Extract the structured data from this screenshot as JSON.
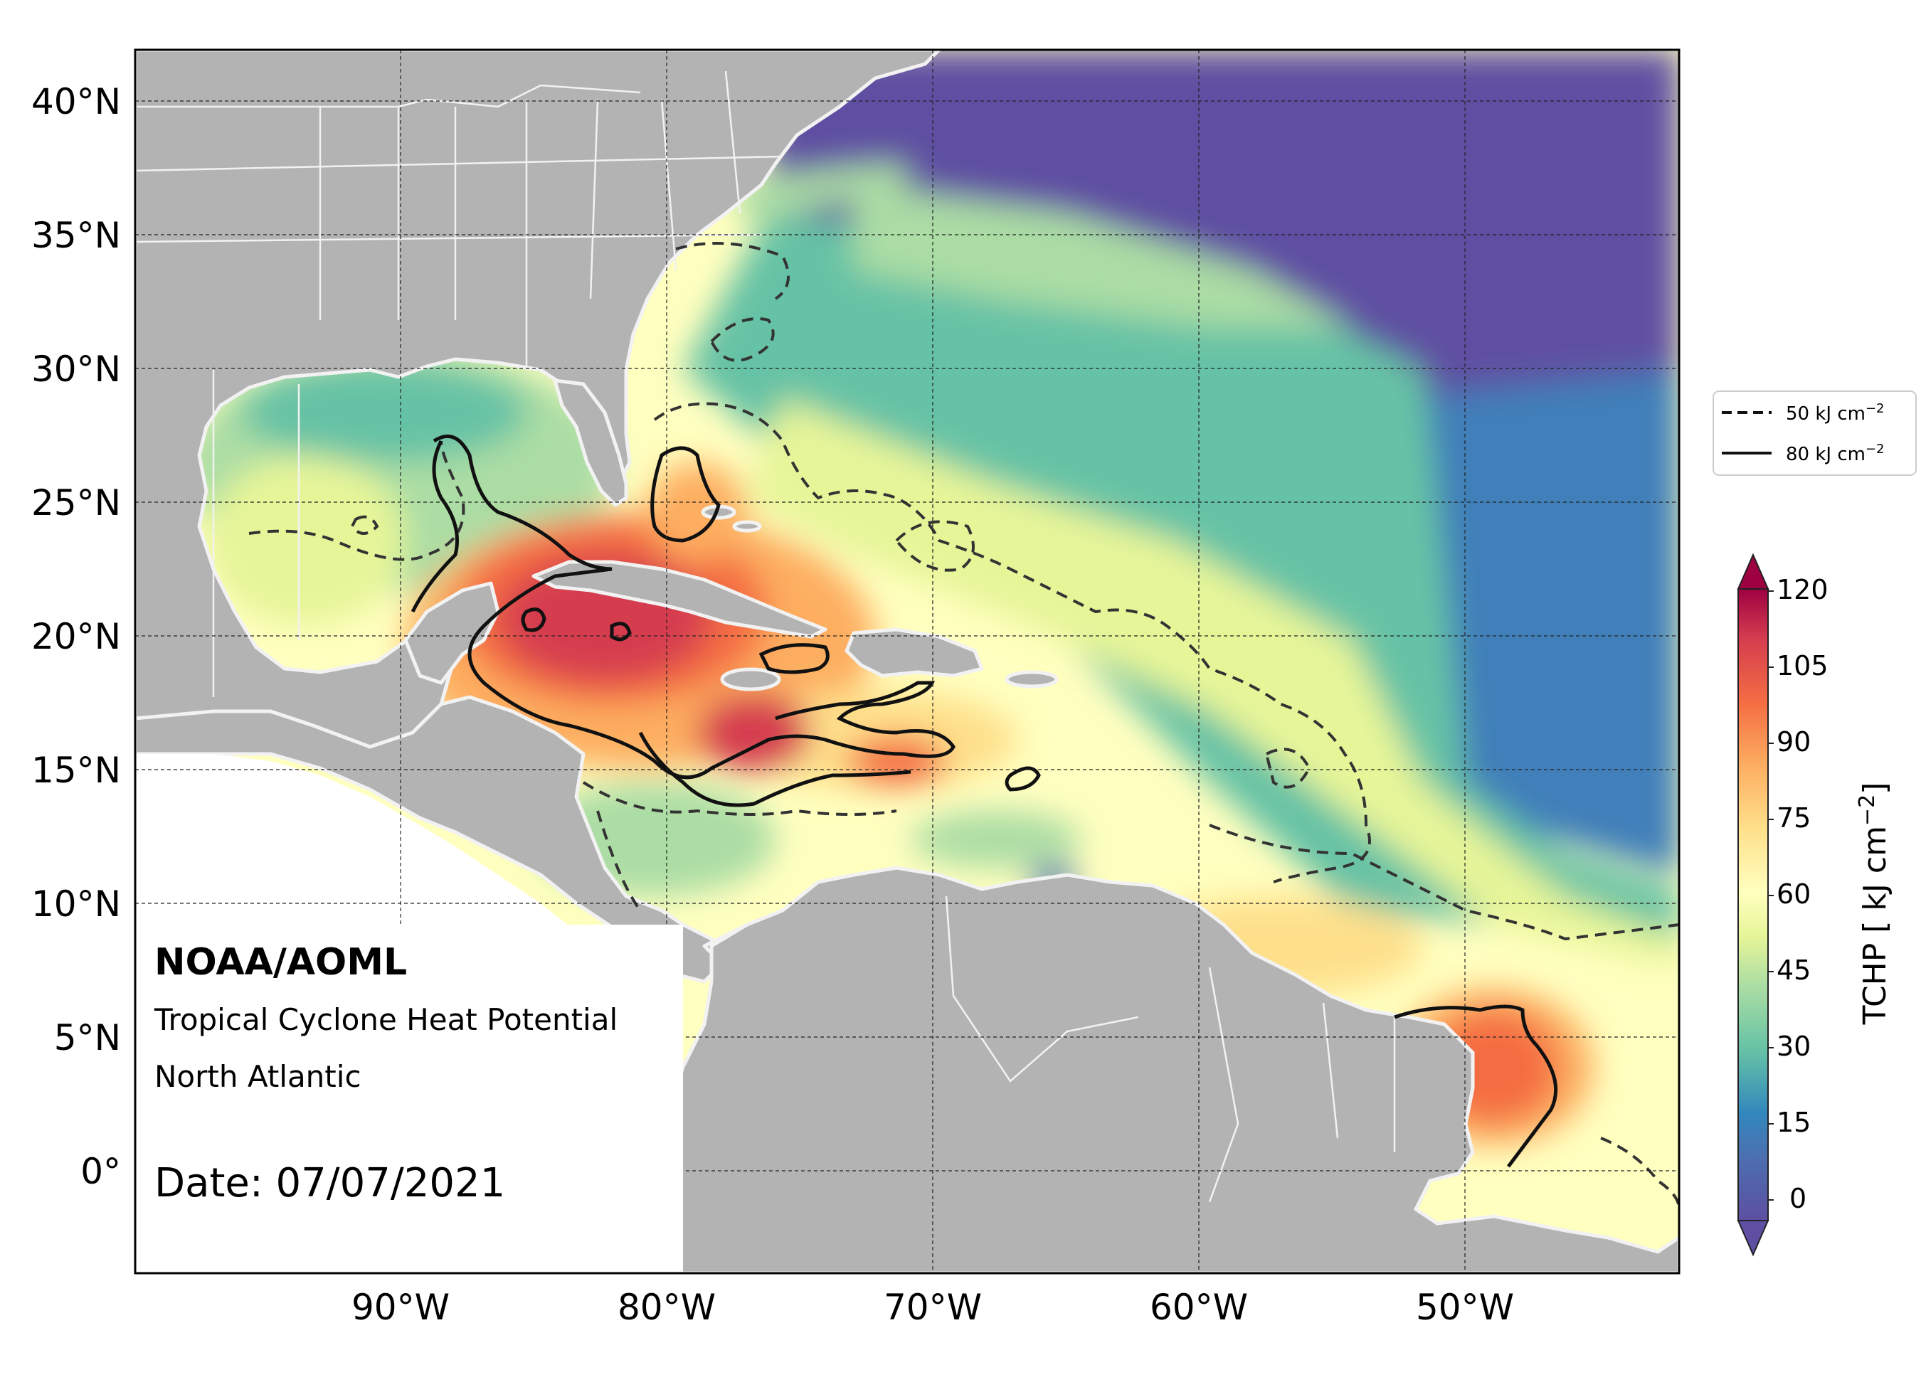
{
  "map": {
    "lat_ticks": [
      "40°N",
      "35°N",
      "30°N",
      "25°N",
      "20°N",
      "15°N",
      "10°N",
      "5°N",
      "0°"
    ],
    "lon_ticks": [
      "90°W",
      "80°W",
      "70°W",
      "60°W",
      "50°W"
    ],
    "extent": {
      "lon_min": -100,
      "lon_max": -42,
      "lat_min": -4,
      "lat_max": 42
    }
  },
  "info": {
    "org": "NOAA/AOML",
    "product": "Tropical Cyclone Heat Potential",
    "region": "North Atlantic",
    "date": "Date: 07/07/2021"
  },
  "legend": {
    "items": [
      {
        "label": "50 kJ cm",
        "sup": "−2",
        "style": "dashed"
      },
      {
        "label": "80 kJ cm",
        "sup": "−2",
        "style": "solid"
      }
    ]
  },
  "colorbar": {
    "title": "TCHP [ kJ cm",
    "title_sup": "−2",
    "title_end": "]",
    "ticks": [
      "120",
      "105",
      "90",
      "75",
      "60",
      "45",
      "30",
      "15",
      "0"
    ],
    "min": 0,
    "max": 120,
    "colors": [
      "#5e4fa2",
      "#4c7fb8",
      "#3288bd",
      "#66c2a5",
      "#abdda4",
      "#e6f598",
      "#ffffbf",
      "#fee08b",
      "#fdae61",
      "#f46d43",
      "#d53e4f",
      "#9e0142"
    ]
  },
  "colors": {
    "land": "#b3b3b3",
    "coast": "#f2f2f2",
    "deep_ocean": "#6655a8"
  }
}
